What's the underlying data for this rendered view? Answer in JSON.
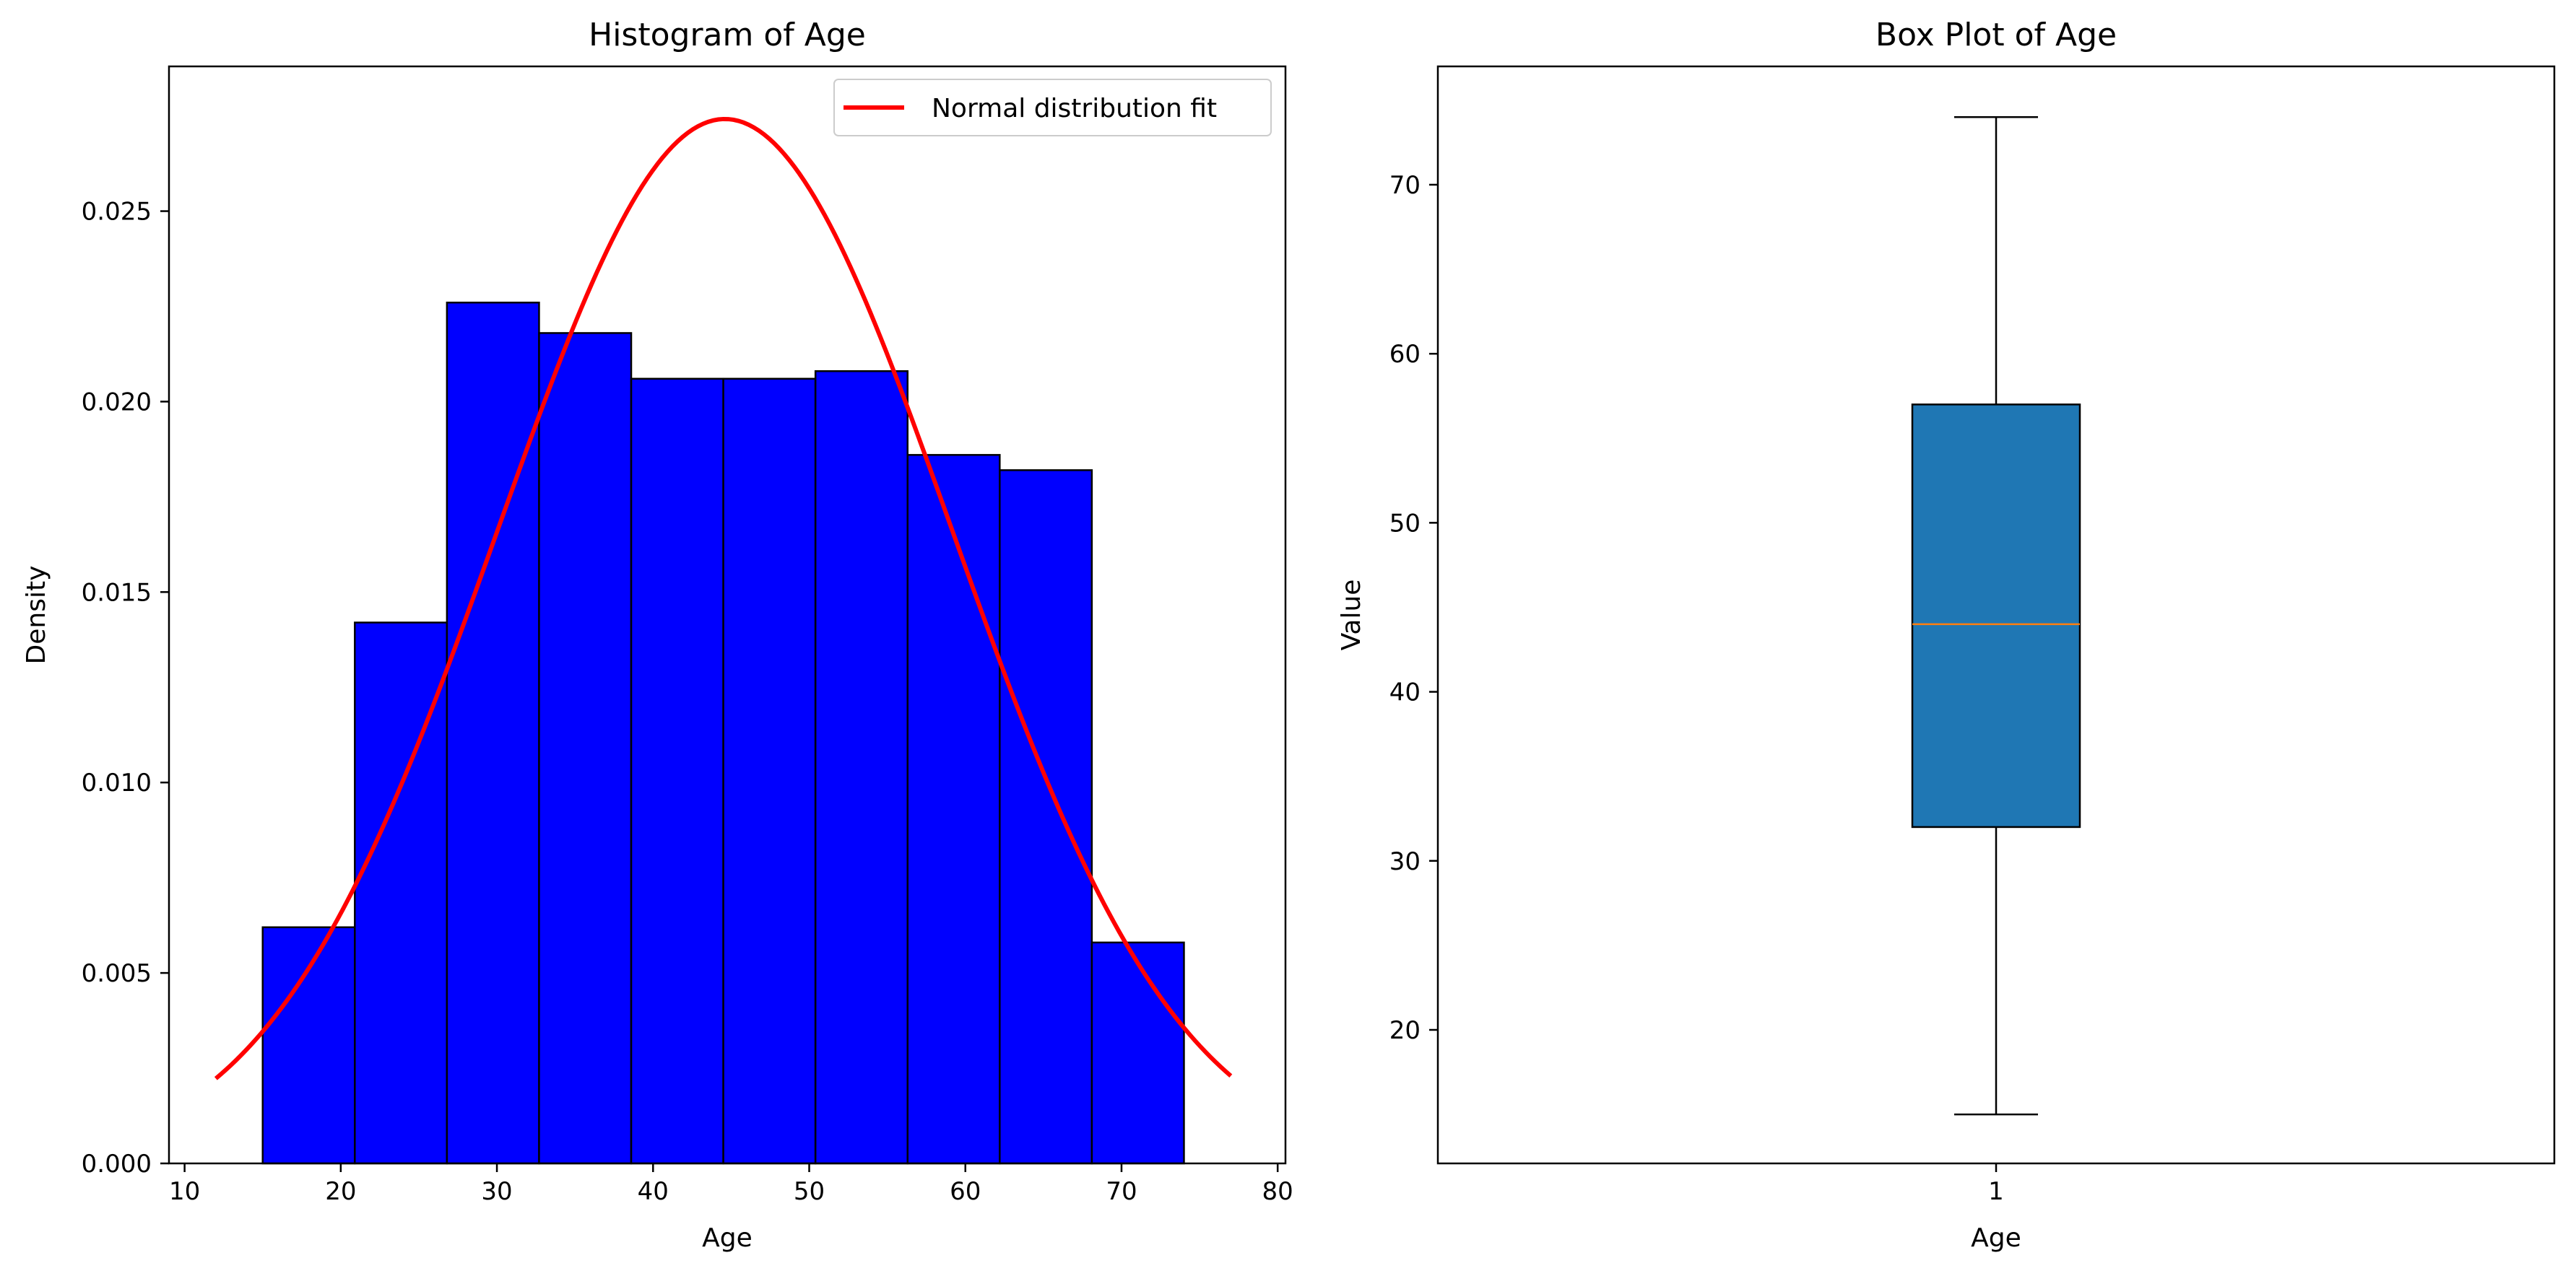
{
  "chart_data": [
    {
      "type": "bar",
      "subtype": "histogram",
      "title": "Histogram of Age",
      "xlabel": "Age",
      "ylabel": "Density",
      "xlim": [
        9,
        80.5
      ],
      "ylim": [
        0,
        0.0288
      ],
      "xticks": [
        10,
        20,
        30,
        40,
        50,
        60,
        70,
        80
      ],
      "yticks": [
        0.0,
        0.005,
        0.01,
        0.015,
        0.02,
        0.025
      ],
      "ytick_labels": [
        "0.000",
        "0.005",
        "0.010",
        "0.015",
        "0.020",
        "0.025"
      ],
      "bin_edges": [
        15,
        20.9,
        26.8,
        32.7,
        38.6,
        44.5,
        50.4,
        56.3,
        62.2,
        68.1,
        74
      ],
      "values": [
        0.0062,
        0.0142,
        0.0226,
        0.0218,
        0.0206,
        0.0206,
        0.0208,
        0.0186,
        0.0182,
        0.0058
      ],
      "bar_color": "#0000ff",
      "edge_color": "#000000",
      "fit": {
        "name": "Normal distribution fit",
        "mean": 44.6,
        "std": 14.55,
        "x_range": [
          12,
          77
        ],
        "color": "#ff0000"
      },
      "legend": {
        "position": "upper-right",
        "entries": [
          "Normal distribution fit"
        ]
      },
      "grid": false
    },
    {
      "type": "box",
      "title": "Box Plot of Age",
      "xlabel": "Age",
      "ylabel": "Value",
      "ylim": [
        12.1,
        77
      ],
      "yticks": [
        20,
        30,
        40,
        50,
        60,
        70
      ],
      "categories": [
        "1"
      ],
      "box": {
        "min": 15,
        "q1": 32,
        "median": 44,
        "q3": 57,
        "max": 74
      },
      "box_color": "#1f77b4",
      "median_color": "#ff7f0e",
      "grid": false
    }
  ]
}
